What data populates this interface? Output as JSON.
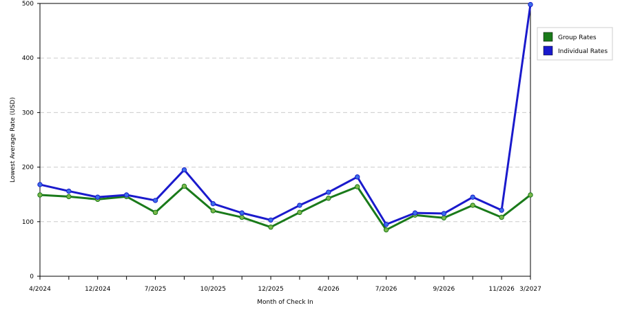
{
  "chart_data": {
    "type": "line",
    "xlabel": "Month of Check In",
    "ylabel": "Lowest Average Rate (USD)",
    "ylim": [
      0,
      500
    ],
    "yticks": [
      0,
      100,
      200,
      300,
      400,
      500
    ],
    "grid": "horizontal-dashed",
    "legend_position": "top-right",
    "x_tick_labels": [
      "4/2024",
      "12/2024",
      "7/2025",
      "10/2025",
      "12/2025",
      "4/2026",
      "7/2026",
      "9/2026",
      "11/2026",
      "3/2027"
    ],
    "x_tick_label_indices": [
      0,
      2,
      4,
      6,
      8,
      10,
      12,
      14,
      16,
      17
    ],
    "point_count": 18,
    "series": [
      {
        "name": "Group Rates",
        "color": "#1a7a1a",
        "marker_color": "#7ab84a",
        "values": [
          149,
          146,
          141,
          146,
          117,
          165,
          120,
          108,
          90,
          117,
          143,
          164,
          85,
          112,
          107,
          130,
          108,
          149
        ]
      },
      {
        "name": "Individual Rates",
        "color": "#1a1acc",
        "marker_color": "#3a6ee8",
        "values": [
          168,
          156,
          145,
          149,
          139,
          195,
          133,
          116,
          103,
          130,
          154,
          182,
          95,
          116,
          115,
          145,
          121,
          498
        ]
      }
    ]
  }
}
